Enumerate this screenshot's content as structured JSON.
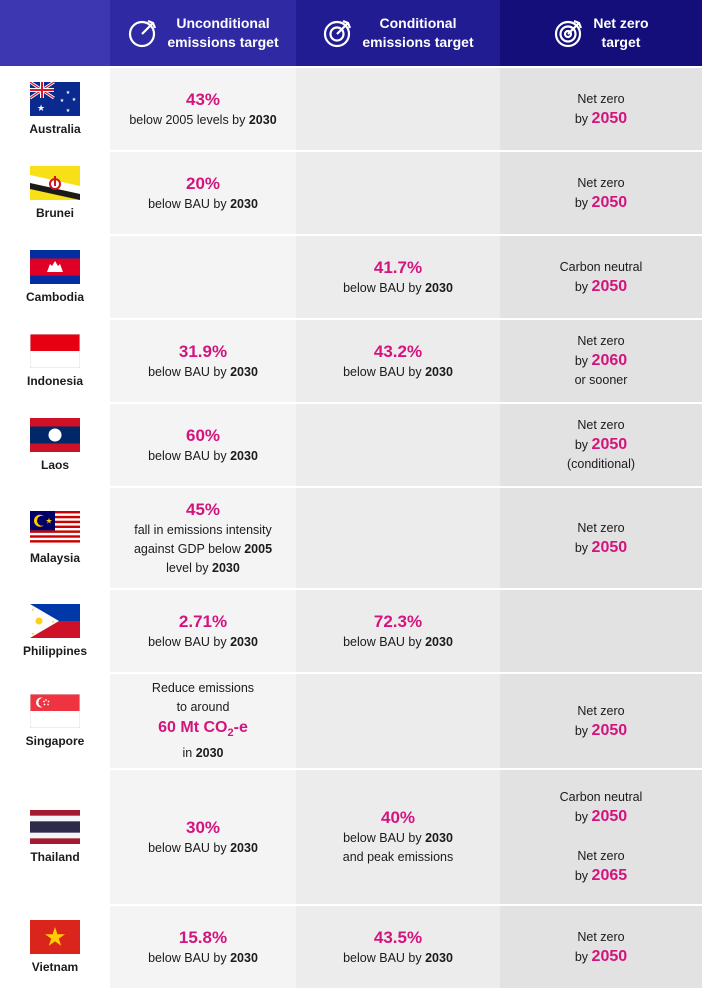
{
  "header": {
    "col1": "Unconditional emissions target",
    "col1_line1": "Unconditional",
    "col1_line2": "emissions target",
    "col2_line1": "Conditional",
    "col2_line2": "emissions target",
    "col3_line1": "Net zero",
    "col3_line2": "target"
  },
  "icons": {
    "col1": "target-arrow-icon",
    "col2": "target-arrow-icon",
    "col3": "target-arrow-icon"
  },
  "colors": {
    "accent": "#d4147e",
    "header_dark": "#140e7a",
    "header_light": "#3e37b2"
  },
  "rows": [
    {
      "country": "Australia",
      "uncond": {
        "value": "43%",
        "pre": "below 2005 levels by",
        "year": "2030"
      },
      "nz": {
        "line1": "Net zero",
        "by": "by",
        "year": "2050"
      }
    },
    {
      "country": "Brunei",
      "uncond": {
        "value": "20%",
        "pre": "below BAU by",
        "year": "2030"
      },
      "nz": {
        "line1": "Net zero",
        "by": "by",
        "year": "2050"
      }
    },
    {
      "country": "Cambodia",
      "cond": {
        "value": "41.7%",
        "pre": "below BAU by",
        "year": "2030"
      },
      "nz": {
        "line1": "Carbon neutral",
        "by": "by",
        "year": "2050"
      }
    },
    {
      "country": "Indonesia",
      "uncond": {
        "value": "31.9%",
        "pre": "below BAU by",
        "year": "2030"
      },
      "cond": {
        "value": "43.2%",
        "pre": "below BAU by",
        "year": "2030"
      },
      "nz": {
        "line1": "Net zero",
        "by": "by",
        "year": "2060",
        "line3": "or sooner"
      }
    },
    {
      "country": "Laos",
      "uncond": {
        "value": "60%",
        "pre": "below BAU by",
        "year": "2030"
      },
      "nz": {
        "line1": "Net zero",
        "by": "by",
        "year": "2050",
        "line3": "(conditional)"
      }
    },
    {
      "country": "Malaysia",
      "uncond": {
        "value": "45%",
        "l1": "fall in emissions intensity",
        "l2pre": "against GDP below",
        "l2year": "2005",
        "l3pre": "level by",
        "l3year": "2030"
      },
      "nz": {
        "line1": "Net zero",
        "by": "by",
        "year": "2050"
      }
    },
    {
      "country": "Philippines",
      "uncond": {
        "value": "2.71%",
        "pre": "below BAU by",
        "year": "2030"
      },
      "cond": {
        "value": "72.3%",
        "pre": "below BAU by",
        "year": "2030"
      }
    },
    {
      "country": "Singapore",
      "uncond": {
        "l1": "Reduce emissions",
        "l2": "to around",
        "value_a": "60 Mt CO",
        "value_sub": "2",
        "value_b": "-e",
        "l4pre": "in",
        "l4year": "2030"
      },
      "nz": {
        "line1": "Net zero",
        "by": "by",
        "year": "2050"
      }
    },
    {
      "country": "Thailand",
      "uncond": {
        "value": "30%",
        "pre": "below BAU by",
        "year": "2030"
      },
      "cond": {
        "value": "40%",
        "pre": "below BAU by",
        "year": "2030",
        "line3": "and peak emissions"
      },
      "nz": {
        "line1": "Carbon neutral",
        "by": "by",
        "year": "2050",
        "line1b": "Net zero",
        "byb": "by",
        "yearb": "2065"
      }
    },
    {
      "country": "Vietnam",
      "uncond": {
        "value": "15.8%",
        "pre": "below BAU by",
        "year": "2030"
      },
      "cond": {
        "value": "43.5%",
        "pre": "below BAU by",
        "year": "2030"
      },
      "nz": {
        "line1": "Net zero",
        "by": "by",
        "year": "2050"
      }
    }
  ]
}
